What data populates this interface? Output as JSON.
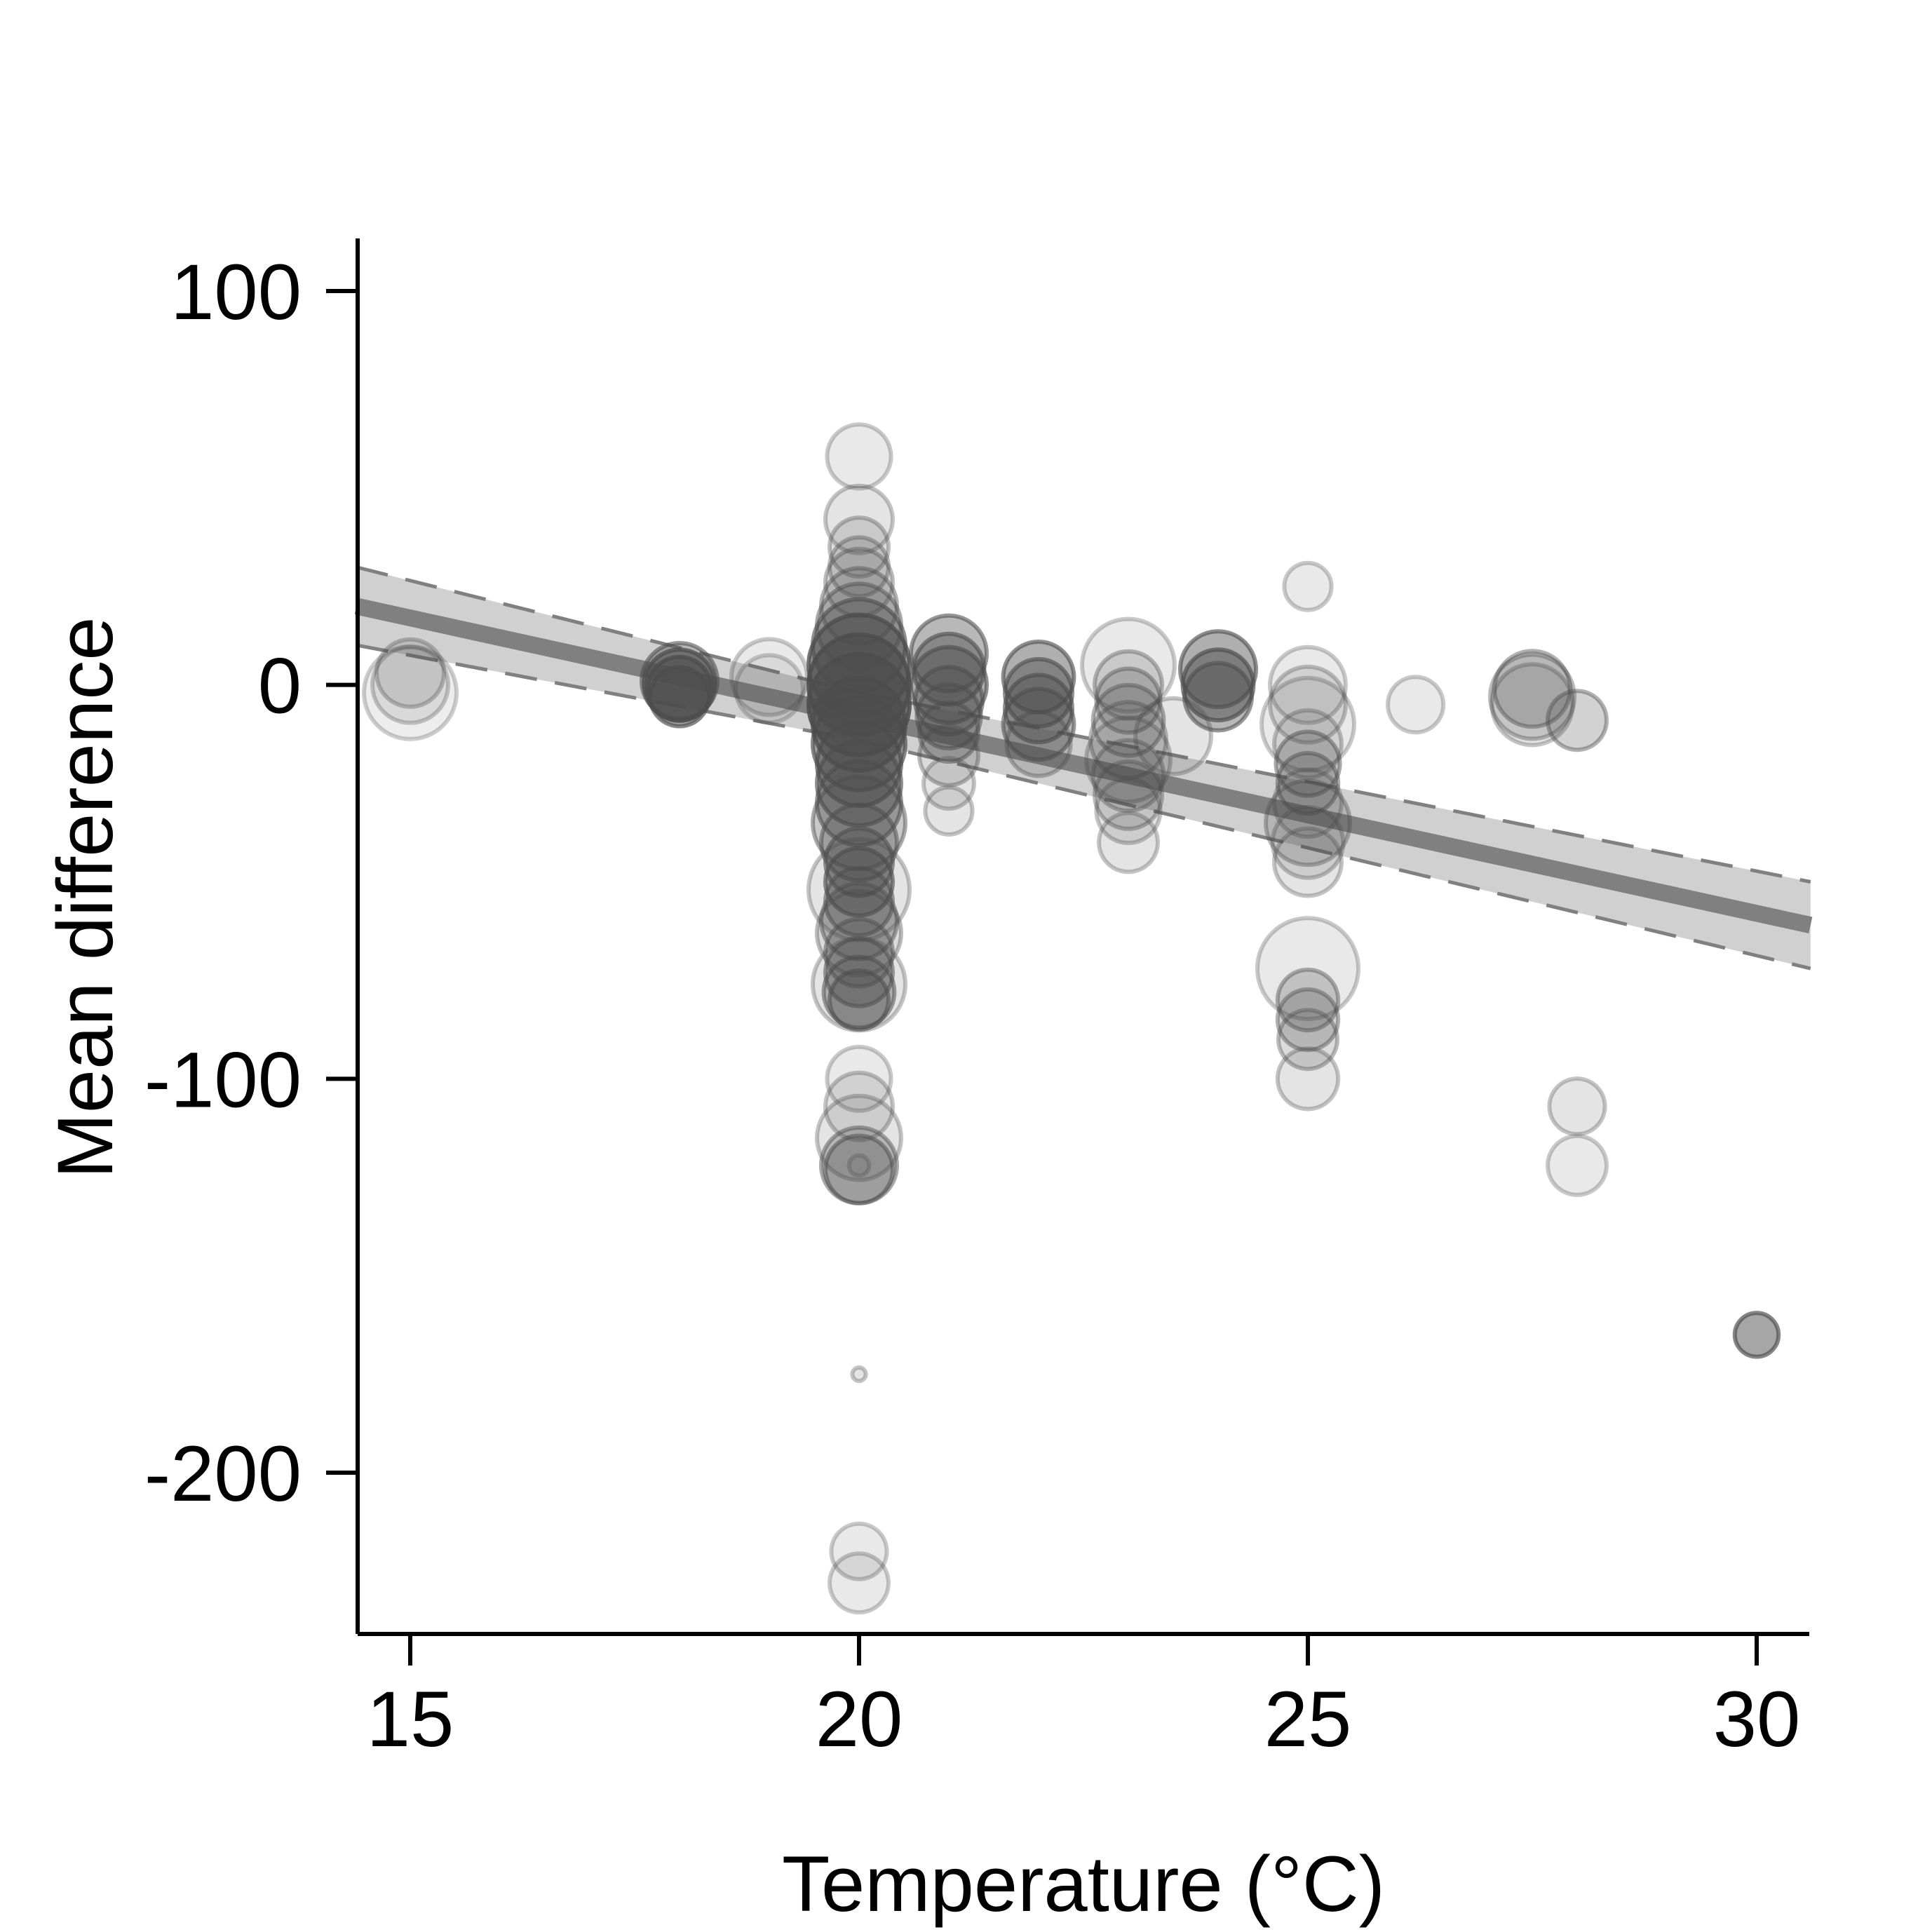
{
  "chart_data": {
    "type": "scatter",
    "title": "",
    "xlabel": "Temperature (°C)",
    "ylabel": "Mean difference",
    "xlim": [
      14.4,
      30.6
    ],
    "ylim": [
      -242,
      114
    ],
    "xticks": [
      15,
      20,
      25,
      30
    ],
    "yticks": [
      100,
      0,
      -100,
      -200
    ],
    "xtick_labels": [
      "15",
      "20",
      "25",
      "30"
    ],
    "ytick_labels": [
      "100",
      "0",
      "-100",
      "-200"
    ],
    "grid": false,
    "legend": "none",
    "regression": {
      "slope": -5.0,
      "intercept": 92.0,
      "ci_half_width": 11
    },
    "colors": {
      "band": "#d0d0d0",
      "fit": "#808080",
      "ci_line": "#808080",
      "point": "#4d4d4d",
      "axis": "#000000"
    },
    "points": [
      [
        15,
        0,
        0.45,
        0.12
      ],
      [
        15,
        -2,
        0.55,
        0.1
      ],
      [
        15,
        3,
        0.4,
        0.15
      ],
      [
        18,
        0,
        0.42,
        0.55
      ],
      [
        18,
        -1,
        0.38,
        0.6
      ],
      [
        18,
        1,
        0.45,
        0.4
      ],
      [
        18,
        -3,
        0.35,
        0.5
      ],
      [
        19,
        2,
        0.45,
        0.12
      ],
      [
        19,
        -1,
        0.4,
        0.1
      ],
      [
        20,
        58,
        0.38,
        0.12
      ],
      [
        20,
        42,
        0.4,
        0.15
      ],
      [
        20,
        35,
        0.35,
        0.18
      ],
      [
        20,
        30,
        0.35,
        0.2
      ],
      [
        20,
        26,
        0.4,
        0.2
      ],
      [
        20,
        20,
        0.45,
        0.25
      ],
      [
        20,
        15,
        0.5,
        0.3
      ],
      [
        20,
        10,
        0.55,
        0.45
      ],
      [
        20,
        5,
        0.6,
        0.6
      ],
      [
        20,
        0,
        0.6,
        0.7
      ],
      [
        20,
        -5,
        0.6,
        0.7
      ],
      [
        20,
        -10,
        0.55,
        0.6
      ],
      [
        20,
        -15,
        0.55,
        0.5
      ],
      [
        20,
        -20,
        0.5,
        0.5
      ],
      [
        20,
        -25,
        0.5,
        0.45
      ],
      [
        20,
        -30,
        0.5,
        0.4
      ],
      [
        20,
        -35,
        0.55,
        0.3
      ],
      [
        20,
        -40,
        0.45,
        0.35
      ],
      [
        20,
        -45,
        0.4,
        0.4
      ],
      [
        20,
        -50,
        0.4,
        0.45
      ],
      [
        20,
        -52,
        0.6,
        0.15
      ],
      [
        20,
        -55,
        0.4,
        0.35
      ],
      [
        20,
        -60,
        0.45,
        0.3
      ],
      [
        20,
        -63,
        0.5,
        0.2
      ],
      [
        20,
        -68,
        0.4,
        0.3
      ],
      [
        20,
        -73,
        0.4,
        0.35
      ],
      [
        20,
        -76,
        0.55,
        0.15
      ],
      [
        20,
        -78,
        0.42,
        0.35
      ],
      [
        20,
        -80,
        0.35,
        0.4
      ],
      [
        20,
        -100,
        0.38,
        0.12
      ],
      [
        20,
        -107,
        0.4,
        0.15
      ],
      [
        20,
        -115,
        0.5,
        0.15
      ],
      [
        20,
        -122,
        0.45,
        0.3
      ],
      [
        20,
        -123,
        0.4,
        0.35
      ],
      [
        20,
        -122,
        0.12,
        0.12
      ],
      [
        20,
        -175,
        0.08,
        0.15
      ],
      [
        20,
        -220,
        0.33,
        0.12
      ],
      [
        20,
        -228,
        0.35,
        0.12
      ],
      [
        21,
        8,
        0.45,
        0.4
      ],
      [
        21,
        4,
        0.42,
        0.45
      ],
      [
        21,
        0,
        0.45,
        0.45
      ],
      [
        21,
        -4,
        0.4,
        0.4
      ],
      [
        21,
        -8,
        0.38,
        0.35
      ],
      [
        21,
        -12,
        0.35,
        0.3
      ],
      [
        21,
        -18,
        0.35,
        0.2
      ],
      [
        21,
        -25,
        0.3,
        0.15
      ],
      [
        21,
        -32,
        0.28,
        0.15
      ],
      [
        22,
        2,
        0.42,
        0.45
      ],
      [
        22,
        -2,
        0.4,
        0.45
      ],
      [
        22,
        -6,
        0.4,
        0.45
      ],
      [
        22,
        -10,
        0.42,
        0.4
      ],
      [
        22,
        -15,
        0.38,
        0.2
      ],
      [
        23,
        5,
        0.55,
        0.12
      ],
      [
        23,
        0,
        0.4,
        0.2
      ],
      [
        23,
        -4,
        0.38,
        0.25
      ],
      [
        23,
        -9,
        0.42,
        0.25
      ],
      [
        23,
        -14,
        0.45,
        0.2
      ],
      [
        23,
        -19,
        0.5,
        0.15
      ],
      [
        23,
        -23,
        0.42,
        0.2
      ],
      [
        23,
        -28,
        0.4,
        0.2
      ],
      [
        23,
        -32,
        0.38,
        0.15
      ],
      [
        23,
        -40,
        0.35,
        0.15
      ],
      [
        23.5,
        -13,
        0.45,
        0.15
      ],
      [
        24,
        4,
        0.45,
        0.45
      ],
      [
        24,
        0,
        0.42,
        0.5
      ],
      [
        24,
        -3,
        0.4,
        0.4
      ],
      [
        25,
        25,
        0.28,
        0.12
      ],
      [
        25,
        0,
        0.45,
        0.12
      ],
      [
        25,
        -5,
        0.45,
        0.15
      ],
      [
        25,
        -10,
        0.55,
        0.12
      ],
      [
        25,
        -15,
        0.4,
        0.15
      ],
      [
        25,
        -20,
        0.38,
        0.3
      ],
      [
        25,
        -25,
        0.36,
        0.3
      ],
      [
        25,
        -30,
        0.4,
        0.15
      ],
      [
        25,
        -35,
        0.5,
        0.2
      ],
      [
        25,
        -40,
        0.42,
        0.15
      ],
      [
        25,
        -45,
        0.4,
        0.15
      ],
      [
        25,
        -72,
        0.6,
        0.12
      ],
      [
        25,
        -80,
        0.36,
        0.25
      ],
      [
        25,
        -85,
        0.36,
        0.25
      ],
      [
        25,
        -90,
        0.35,
        0.2
      ],
      [
        25,
        -100,
        0.36,
        0.15
      ],
      [
        26.2,
        -5,
        0.33,
        0.12
      ],
      [
        27.5,
        -1,
        0.45,
        0.25
      ],
      [
        27.5,
        -3,
        0.5,
        0.2
      ],
      [
        27.5,
        -5,
        0.48,
        0.15
      ],
      [
        28,
        -9,
        0.35,
        0.25
      ],
      [
        28,
        -107,
        0.33,
        0.15
      ],
      [
        28,
        -122,
        0.35,
        0.12
      ],
      [
        30,
        -165,
        0.26,
        0.5
      ]
    ]
  }
}
